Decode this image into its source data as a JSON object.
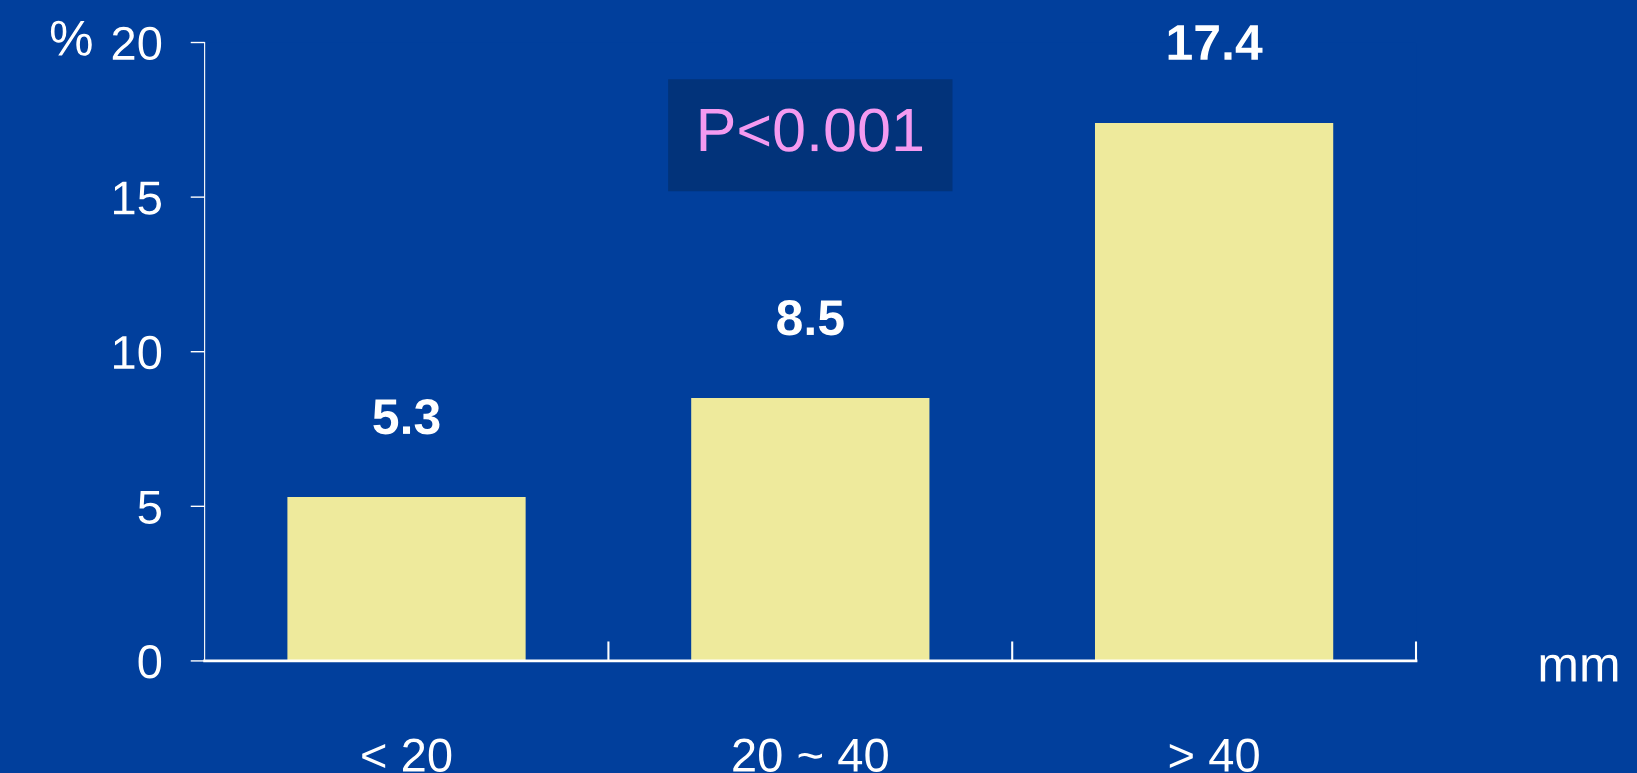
{
  "chart_data": {
    "type": "bar",
    "categories": [
      "< 20",
      "20 ~ 40",
      "> 40"
    ],
    "values": [
      5.3,
      8.5,
      17.4
    ],
    "color": "#eeea9c",
    "ylabel": "%",
    "xlabel": "mm",
    "ylim": [
      0,
      20
    ],
    "yticks": [
      0,
      5,
      10,
      15,
      20
    ],
    "data_labels": true,
    "grid": false,
    "legend": false,
    "annotations": [
      "P<0.001"
    ]
  }
}
